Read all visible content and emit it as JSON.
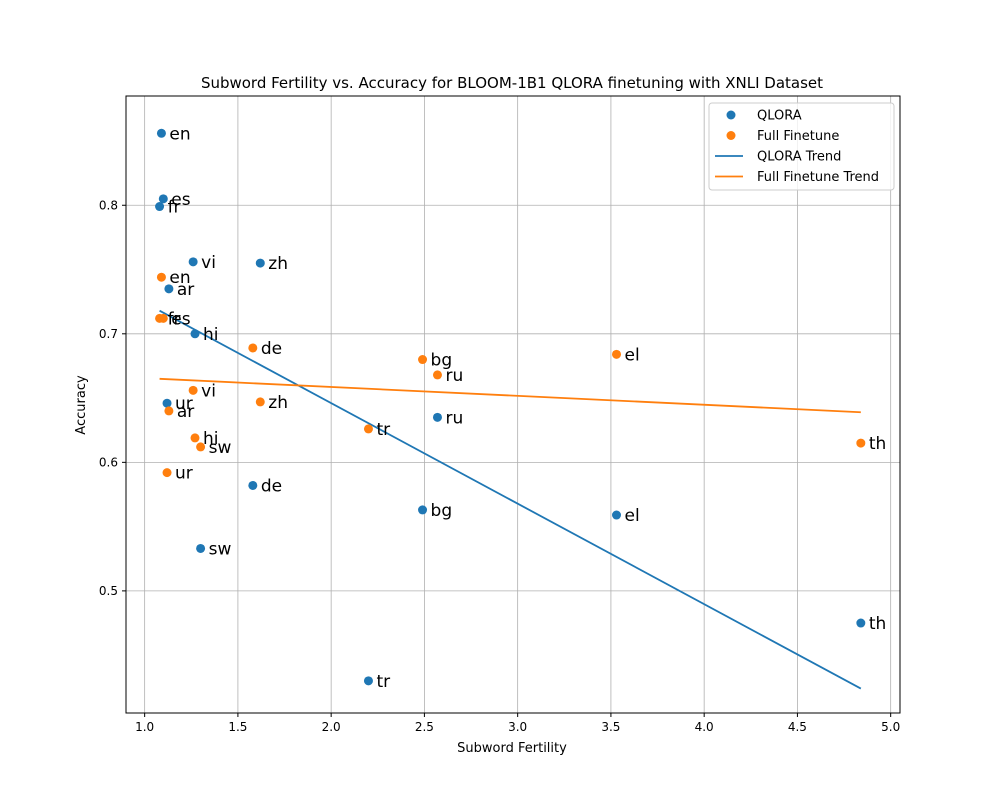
{
  "chart_data": {
    "type": "scatter",
    "title": "Subword Fertility vs. Accuracy for BLOOM-1B1 QLORA finetuning with XNLI Dataset",
    "xlabel": "Subword Fertility",
    "ylabel": "Accuracy",
    "xlim": [
      0.9,
      5.05
    ],
    "ylim": [
      0.405,
      0.885
    ],
    "xticks": [
      1.0,
      1.5,
      2.0,
      2.5,
      3.0,
      3.5,
      4.0,
      4.5,
      5.0
    ],
    "xtick_labels": [
      "1.0",
      "1.5",
      "2.0",
      "2.5",
      "3.0",
      "3.5",
      "4.0",
      "4.5",
      "5.0"
    ],
    "yticks": [
      0.5,
      0.6,
      0.7,
      0.8
    ],
    "ytick_labels": [
      "0.5",
      "0.6",
      "0.7",
      "0.8"
    ],
    "grid": true,
    "legend_position": "top-right",
    "series": [
      {
        "name": "QLORA",
        "color": "#1f77b4",
        "label_color": "#000000",
        "points": [
          {
            "label": "en",
            "x": 1.09,
            "y": 0.856
          },
          {
            "label": "es",
            "x": 1.1,
            "y": 0.805
          },
          {
            "label": "fr",
            "x": 1.08,
            "y": 0.799
          },
          {
            "label": "vi",
            "x": 1.26,
            "y": 0.756
          },
          {
            "label": "zh",
            "x": 1.62,
            "y": 0.755
          },
          {
            "label": "ar",
            "x": 1.13,
            "y": 0.735
          },
          {
            "label": "hi",
            "x": 1.27,
            "y": 0.7
          },
          {
            "label": "ur",
            "x": 1.12,
            "y": 0.646
          },
          {
            "label": "ru",
            "x": 2.57,
            "y": 0.635
          },
          {
            "label": "de",
            "x": 1.58,
            "y": 0.582
          },
          {
            "label": "bg",
            "x": 2.49,
            "y": 0.563
          },
          {
            "label": "el",
            "x": 3.53,
            "y": 0.559
          },
          {
            "label": "sw",
            "x": 1.3,
            "y": 0.533
          },
          {
            "label": "th",
            "x": 4.84,
            "y": 0.475
          },
          {
            "label": "tr",
            "x": 2.2,
            "y": 0.43
          }
        ]
      },
      {
        "name": "Full Finetune",
        "color": "#ff7f0e",
        "label_color": "#a52a2a",
        "points": [
          {
            "label": "en",
            "x": 1.09,
            "y": 0.744
          },
          {
            "label": "fr",
            "x": 1.08,
            "y": 0.712
          },
          {
            "label": "es",
            "x": 1.1,
            "y": 0.712
          },
          {
            "label": "de",
            "x": 1.58,
            "y": 0.689
          },
          {
            "label": "el",
            "x": 3.53,
            "y": 0.684
          },
          {
            "label": "bg",
            "x": 2.49,
            "y": 0.68
          },
          {
            "label": "ru",
            "x": 2.57,
            "y": 0.668
          },
          {
            "label": "vi",
            "x": 1.26,
            "y": 0.656
          },
          {
            "label": "zh",
            "x": 1.62,
            "y": 0.647
          },
          {
            "label": "ar",
            "x": 1.13,
            "y": 0.64
          },
          {
            "label": "tr",
            "x": 2.2,
            "y": 0.626
          },
          {
            "label": "hi",
            "x": 1.27,
            "y": 0.619
          },
          {
            "label": "th",
            "x": 4.84,
            "y": 0.615
          },
          {
            "label": "sw",
            "x": 1.3,
            "y": 0.612
          },
          {
            "label": "ur",
            "x": 1.12,
            "y": 0.592
          }
        ]
      }
    ],
    "trend_lines": [
      {
        "name": "QLORA Trend",
        "color": "#1f77b4",
        "x": [
          1.08,
          4.84
        ],
        "y": [
          0.718,
          0.424
        ]
      },
      {
        "name": "Full Finetune Trend",
        "color": "#ff7f0e",
        "x": [
          1.08,
          4.84
        ],
        "y": [
          0.665,
          0.639
        ]
      }
    ],
    "legend_entries": [
      {
        "label": "QLORA",
        "kind": "marker",
        "color": "#1f77b4"
      },
      {
        "label": "Full Finetune",
        "kind": "marker",
        "color": "#ff7f0e"
      },
      {
        "label": "QLORA Trend",
        "kind": "line",
        "color": "#1f77b4"
      },
      {
        "label": "Full Finetune Trend",
        "kind": "line",
        "color": "#ff7f0e"
      }
    ]
  }
}
